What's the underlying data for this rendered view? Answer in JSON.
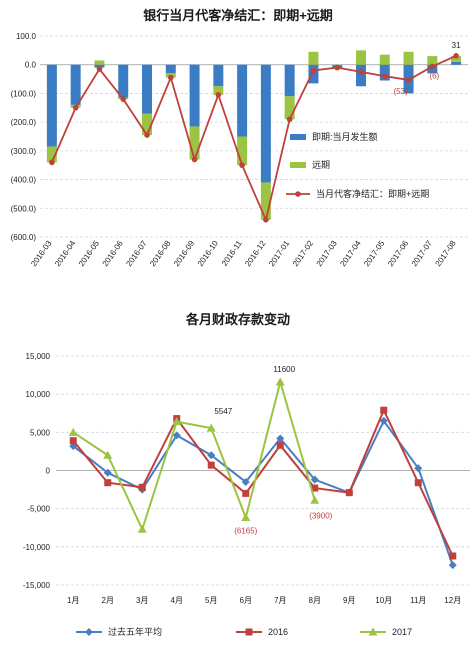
{
  "chart_data": [
    {
      "type": "bar",
      "title": "银行当月代客净结汇：即期+远期",
      "xlabel": "",
      "ylabel": "",
      "categories": [
        "2016-03",
        "2016-04",
        "2016-05",
        "2016-06",
        "2016-07",
        "2016-08",
        "2016-09",
        "2016-10",
        "2016-11",
        "2016-12",
        "2017-01",
        "2017-02",
        "2017-03",
        "2017-04",
        "2017-05",
        "2017-06",
        "2017-07",
        "2017-08"
      ],
      "ylim": [
        -600,
        100
      ],
      "yticks": [
        100,
        0,
        -100,
        -200,
        -300,
        -400,
        -500,
        -600
      ],
      "ytick_labels": [
        "100.0",
        "0.0",
        "(100.0)",
        "(200.0)",
        "(300.0)",
        "(400.0)",
        "(500.0)",
        "(600.0)"
      ],
      "grid": true,
      "stacked": true,
      "legend_position": "right-inside",
      "series": [
        {
          "name": "即期:当月发生额",
          "kind": "bar",
          "color": "#3b7dc4",
          "values": [
            -285,
            -140,
            -10,
            -115,
            -170,
            -30,
            -215,
            -75,
            -250,
            -410,
            -110,
            -65,
            -10,
            -75,
            -55,
            -100,
            -30,
            10
          ]
        },
        {
          "name": "远期",
          "kind": "bar",
          "color": "#9bc442",
          "values": [
            -55,
            -10,
            15,
            -5,
            -75,
            -15,
            -115,
            -30,
            -100,
            -130,
            -80,
            45,
            0,
            50,
            35,
            45,
            30,
            20
          ]
        },
        {
          "name": "当月代客净结汇：即期+远期",
          "kind": "line",
          "color": "#c0403c",
          "values": [
            -340,
            -150,
            -15,
            -120,
            -245,
            -45,
            -330,
            -105,
            -350,
            -540,
            -190,
            -20,
            -10,
            -25,
            -40,
            -53,
            -6,
            31
          ]
        }
      ],
      "annotations": [
        {
          "text": "31",
          "series": 2,
          "index": 17,
          "color": "#222222"
        },
        {
          "text": "(53)",
          "series": 2,
          "index": 15,
          "color": "#c0403c"
        },
        {
          "text": "(6)",
          "series": 2,
          "index": 16,
          "color": "#c0403c"
        }
      ]
    },
    {
      "type": "line",
      "title": "各月财政存款变动",
      "xlabel": "",
      "ylabel": "",
      "categories": [
        "1月",
        "2月",
        "3月",
        "4月",
        "5月",
        "6月",
        "7月",
        "8月",
        "9月",
        "10月",
        "11月",
        "12月"
      ],
      "ylim": [
        -15000,
        15000
      ],
      "yticks": [
        15000,
        10000,
        5000,
        0,
        -5000,
        -10000,
        -15000
      ],
      "ytick_labels": [
        "15,000",
        "10,000",
        "5,000",
        "0",
        "-5,000",
        "-10,000",
        "-15,000"
      ],
      "grid": true,
      "legend_position": "bottom",
      "series": [
        {
          "name": "过去五年平均",
          "color": "#4a7ec4",
          "marker": "diamond",
          "values": [
            3200,
            -300,
            -2500,
            4600,
            2000,
            -1500,
            4200,
            -1200,
            -2900,
            6500,
            300,
            -12400
          ]
        },
        {
          "name": "2016",
          "color": "#c0403c",
          "marker": "square",
          "values": [
            3900,
            -1600,
            -2200,
            6800,
            700,
            -3000,
            3300,
            -2300,
            -2900,
            7900,
            -1600,
            -11200
          ]
        },
        {
          "name": "2017",
          "color": "#9bc442",
          "marker": "triangle",
          "values": [
            5000,
            2000,
            -7700,
            6400,
            5547,
            -6165,
            11600,
            -3900,
            null,
            null,
            null,
            null
          ]
        }
      ],
      "annotations": [
        {
          "text": "5547",
          "series": 2,
          "index": 4,
          "color": "#222222"
        },
        {
          "text": "11600",
          "series": 2,
          "index": 6,
          "color": "#222222"
        },
        {
          "text": "(6165)",
          "series": 2,
          "index": 5,
          "color": "#c0403c"
        },
        {
          "text": "(3900)",
          "series": 2,
          "index": 7,
          "color": "#c0403c"
        }
      ]
    }
  ]
}
